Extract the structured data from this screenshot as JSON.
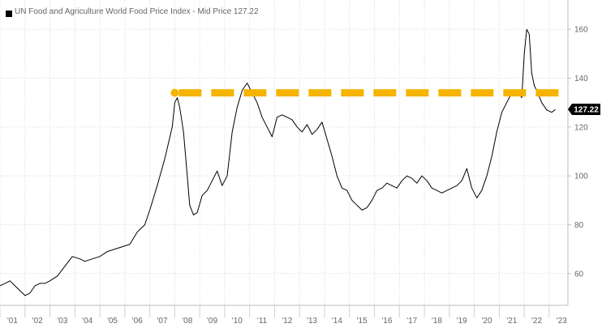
{
  "legend": {
    "label": "UN Food and Agriculture World Food Price Index - Mid Price 127.22"
  },
  "colors": {
    "line": "#000000",
    "reference": "#F5B400",
    "grid": "#D9D9D9",
    "axis_text": "#666666",
    "last_value_bg": "#000000"
  },
  "chart_data": {
    "type": "line",
    "title": "",
    "xlabel": "",
    "ylabel": "",
    "x_range": [
      2001,
      2023.75
    ],
    "ylim": [
      47,
      172
    ],
    "y_ticks": [
      60,
      80,
      100,
      120,
      140,
      160
    ],
    "x_ticks": [
      "'01",
      "'02",
      "'03",
      "'04",
      "'05",
      "'06",
      "'07",
      "'08",
      "'09",
      "'10",
      "'11",
      "'12",
      "'13",
      "'14",
      "'15",
      "'16",
      "'17",
      "'18",
      "'19",
      "'20",
      "'21",
      "'22",
      "'23"
    ],
    "grid": true,
    "y_axis_position": "right",
    "legend_position": "top-left",
    "last_value": "127.22",
    "series": [
      {
        "name": "UN Food and Agriculture World Food Price Index - Mid Price",
        "x": [
          2001.0,
          2001.2,
          2001.4,
          2001.6,
          2001.8,
          2002.0,
          2002.2,
          2002.4,
          2002.6,
          2002.8,
          2003.0,
          2003.3,
          2003.6,
          2003.9,
          2004.2,
          2004.4,
          2004.7,
          2005.0,
          2005.3,
          2005.6,
          2005.9,
          2006.2,
          2006.5,
          2006.8,
          2007.0,
          2007.3,
          2007.6,
          2007.9,
          2008.0,
          2008.1,
          2008.2,
          2008.35,
          2008.5,
          2008.6,
          2008.75,
          2008.9,
          2009.1,
          2009.3,
          2009.5,
          2009.7,
          2009.9,
          2010.1,
          2010.3,
          2010.5,
          2010.7,
          2010.9,
          2011.1,
          2011.3,
          2011.5,
          2011.7,
          2011.9,
          2012.1,
          2012.3,
          2012.5,
          2012.7,
          2012.9,
          2013.1,
          2013.3,
          2013.5,
          2013.7,
          2013.9,
          2014.1,
          2014.3,
          2014.5,
          2014.7,
          2014.9,
          2015.1,
          2015.3,
          2015.5,
          2015.7,
          2015.9,
          2016.1,
          2016.3,
          2016.5,
          2016.7,
          2016.9,
          2017.1,
          2017.3,
          2017.5,
          2017.7,
          2017.9,
          2018.1,
          2018.3,
          2018.5,
          2018.7,
          2018.9,
          2019.1,
          2019.3,
          2019.5,
          2019.7,
          2019.9,
          2020.1,
          2020.3,
          2020.5,
          2020.7,
          2020.9,
          2021.1,
          2021.3,
          2021.5,
          2021.7,
          2021.9,
          2022.0,
          2022.1,
          2022.2,
          2022.3,
          2022.4,
          2022.5,
          2022.7,
          2022.9,
          2023.1,
          2023.25
        ],
        "values": [
          55,
          56,
          57,
          55,
          53,
          51,
          52,
          55,
          56,
          56,
          57,
          59,
          63,
          67,
          66,
          65,
          66,
          67,
          69,
          70,
          71,
          72,
          77,
          80,
          86,
          96,
          107,
          120,
          130,
          132,
          128,
          118,
          100,
          88,
          84,
          85,
          92,
          94,
          98,
          102,
          96,
          100,
          118,
          128,
          135,
          138,
          134,
          130,
          124,
          120,
          116,
          124,
          125,
          124,
          123,
          120,
          118,
          121,
          117,
          119,
          122,
          115,
          108,
          100,
          95,
          94,
          90,
          88,
          86,
          87,
          90,
          94,
          95,
          97,
          96,
          95,
          98,
          100,
          99,
          97,
          100,
          98,
          95,
          94,
          93,
          94,
          95,
          96,
          98,
          103,
          95,
          91,
          94,
          100,
          108,
          118,
          126,
          130,
          134,
          135,
          132,
          150,
          160,
          158,
          142,
          137,
          135,
          130,
          127,
          126,
          127.22
        ]
      }
    ],
    "reference_lines": [
      {
        "type": "horizontal",
        "y": 134,
        "x_start": 2008.0,
        "x_end": 2023.65,
        "style": "dashed"
      }
    ]
  }
}
